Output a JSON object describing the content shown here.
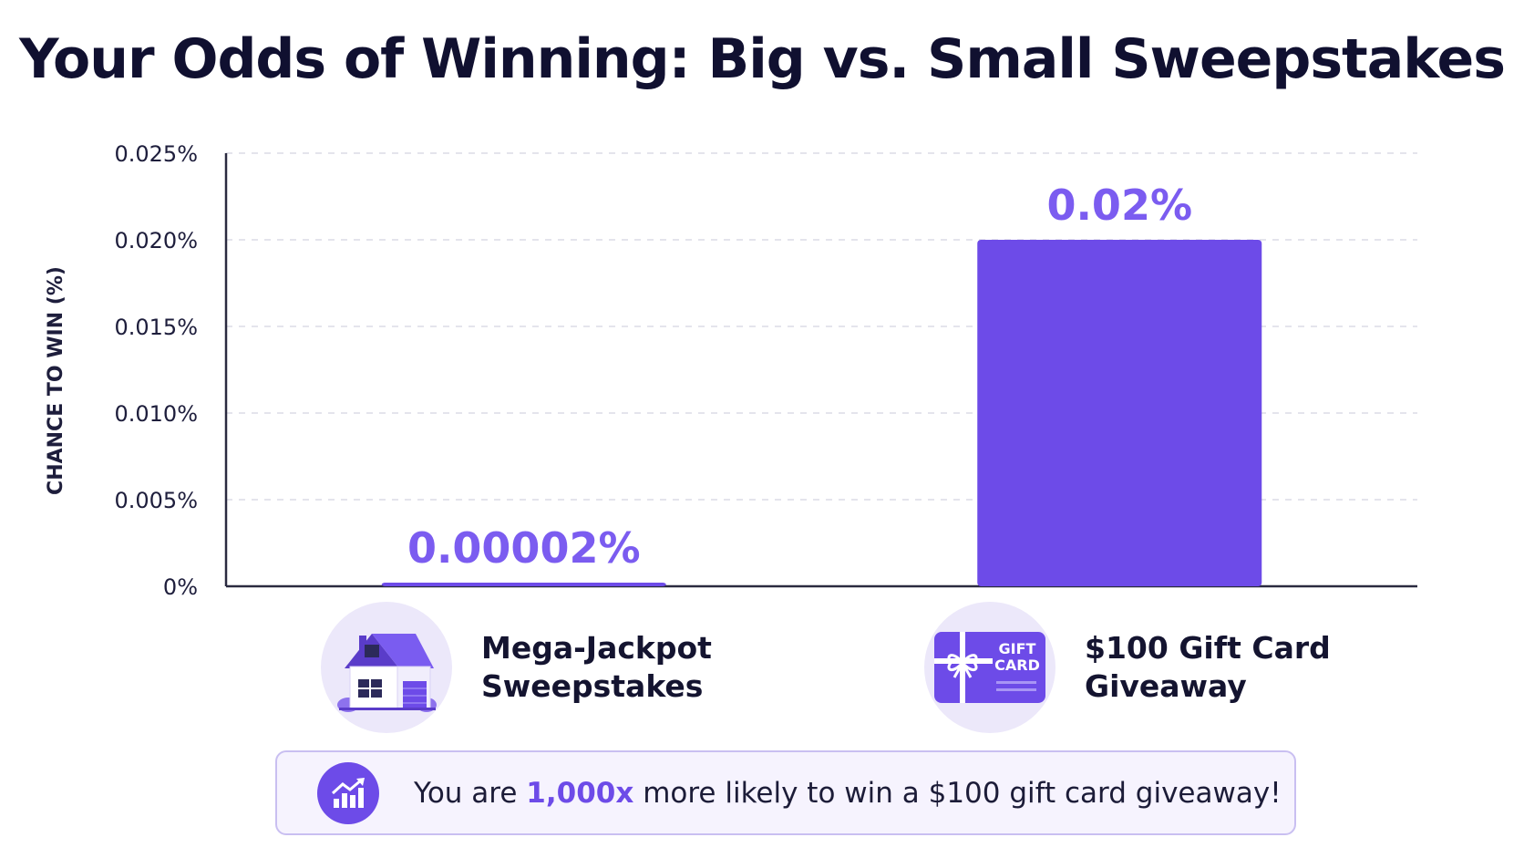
{
  "title": "Your Odds of Winning: Big vs. Small Sweepstakes",
  "chart_data": {
    "type": "bar",
    "title": "Your Odds of Winning: Big vs. Small Sweepstakes",
    "ylabel": "CHANCE TO WIN (%)",
    "xlabel": "",
    "categories": [
      "Mega-Jackpot Sweepstakes",
      "$100 Gift Card Giveaway"
    ],
    "values": [
      2e-05,
      0.02
    ],
    "data_labels": [
      "0.00002%",
      "0.02%"
    ],
    "ylim": [
      0,
      0.025
    ],
    "yticks": [
      0,
      0.005,
      0.01,
      0.015,
      0.02,
      0.025
    ],
    "ytick_labels": [
      "0%",
      "0.005%",
      "0.010%",
      "0.015%",
      "0.020%",
      "0.025%"
    ],
    "grid": true,
    "bar_color": "#6d4be8",
    "label_color": "#7b5cf0"
  },
  "categories": [
    {
      "line1": "Mega-Jackpot",
      "line2": "Sweepstakes",
      "icon": "house-icon"
    },
    {
      "line1": "$100 Gift Card",
      "line2": "Giveaway",
      "icon": "gift-card-icon"
    }
  ],
  "gift_card": {
    "line1": "GIFT",
    "line2": "CARD"
  },
  "callout": {
    "prefix": "You are ",
    "highlight": "1,000x",
    "suffix": " more likely to win a $100 gift card giveaway!",
    "icon": "trending-chart-icon"
  }
}
